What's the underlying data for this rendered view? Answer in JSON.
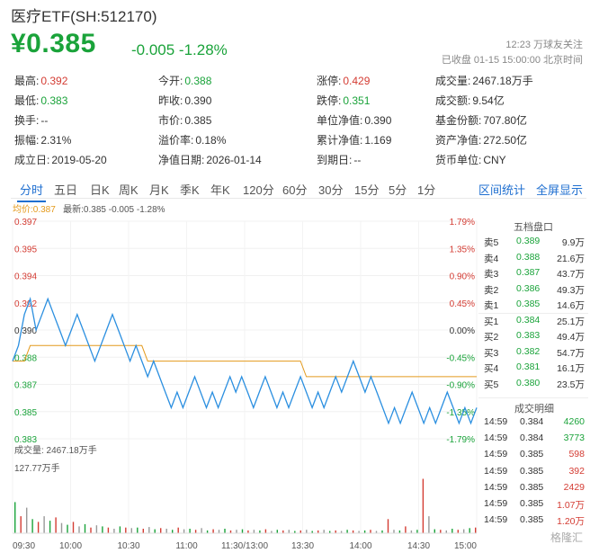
{
  "header": {
    "title": "医疗ETF(SH:512170)",
    "price": "¥0.385",
    "change": "-0.005 -1.28%",
    "time_line1": "12:23  万球友关注",
    "time_line2": "已收盘 01-15 15:00:00 北京时间"
  },
  "stats": [
    {
      "label": "最高:",
      "value": "0.392",
      "color": "red"
    },
    {
      "label": "今开:",
      "value": "0.388",
      "color": "grn"
    },
    {
      "label": "涨停:",
      "value": "0.429",
      "color": "red"
    },
    {
      "label": "成交量:",
      "value": "2467.18万手",
      "color": ""
    },
    {
      "label": "最低:",
      "value": "0.383",
      "color": "grn"
    },
    {
      "label": "昨收:",
      "value": "0.390",
      "color": ""
    },
    {
      "label": "跌停:",
      "value": "0.351",
      "color": "grn"
    },
    {
      "label": "成交额:",
      "value": "9.54亿",
      "color": ""
    },
    {
      "label": "换手:",
      "value": "--",
      "color": ""
    },
    {
      "label": "市价:",
      "value": "0.385",
      "color": ""
    },
    {
      "label": "单位净值:",
      "value": "0.390",
      "color": ""
    },
    {
      "label": "基金份额:",
      "value": "707.80亿",
      "color": ""
    },
    {
      "label": "振幅:",
      "value": "2.31%",
      "color": ""
    },
    {
      "label": "溢价率:",
      "value": "0.18%",
      "color": ""
    },
    {
      "label": "累计净值:",
      "value": "1.169",
      "color": ""
    },
    {
      "label": "资产净值:",
      "value": "272.50亿",
      "color": ""
    },
    {
      "label": "成立日:",
      "value": "2019-05-20",
      "color": ""
    },
    {
      "label": "净值日期:",
      "value": "2026-01-14",
      "color": ""
    },
    {
      "label": "到期日:",
      "value": "--",
      "color": ""
    },
    {
      "label": "货币单位:",
      "value": "CNY",
      "color": ""
    }
  ],
  "tabs": [
    "分时",
    "五日",
    "日K",
    "周K",
    "月K",
    "季K",
    "年K",
    "120分",
    "60分",
    "30分",
    "15分",
    "5分",
    "1分"
  ],
  "tab_links": [
    "区间统计",
    "全屏显示"
  ],
  "legend": {
    "avg": "均价:0.387",
    "last": "最新:0.385 -0.005 -1.28%"
  },
  "chart_data": {
    "type": "line",
    "y_ticks": [
      "0.397",
      "0.395",
      "0.394",
      "0.392",
      "0.390",
      "0.388",
      "0.387",
      "0.385",
      "0.383"
    ],
    "pct_ticks": [
      "1.79%",
      "1.35%",
      "0.90%",
      "0.45%",
      "0.00%",
      "-0.45%",
      "-0.90%",
      "-1.35%",
      "-1.79%"
    ],
    "x_ticks": [
      "09:30",
      "10:00",
      "10:30",
      "11:00",
      "11:30/13:00",
      "13:30",
      "14:00",
      "14:30",
      "15:00"
    ],
    "prev_close": 0.39,
    "ylim": [
      0.383,
      0.397
    ],
    "price": [
      0.388,
      0.389,
      0.391,
      0.392,
      0.39,
      0.391,
      0.392,
      0.391,
      0.39,
      0.389,
      0.39,
      0.391,
      0.39,
      0.389,
      0.388,
      0.389,
      0.39,
      0.391,
      0.39,
      0.389,
      0.388,
      0.389,
      0.388,
      0.387,
      0.388,
      0.387,
      0.386,
      0.385,
      0.386,
      0.385,
      0.386,
      0.387,
      0.386,
      0.385,
      0.386,
      0.385,
      0.386,
      0.387,
      0.386,
      0.387,
      0.386,
      0.385,
      0.386,
      0.387,
      0.386,
      0.385,
      0.386,
      0.385,
      0.386,
      0.387,
      0.386,
      0.385,
      0.386,
      0.385,
      0.386,
      0.387,
      0.386,
      0.387,
      0.388,
      0.387,
      0.386,
      0.387,
      0.386,
      0.385,
      0.384,
      0.385,
      0.384,
      0.385,
      0.386,
      0.385,
      0.384,
      0.385,
      0.384,
      0.385,
      0.386,
      0.385,
      0.384,
      0.385,
      0.384,
      0.385
    ],
    "avg": [
      0.388,
      0.388,
      0.388,
      0.389,
      0.389,
      0.389,
      0.389,
      0.389,
      0.389,
      0.389,
      0.389,
      0.389,
      0.389,
      0.389,
      0.389,
      0.389,
      0.389,
      0.389,
      0.389,
      0.389,
      0.389,
      0.389,
      0.389,
      0.388,
      0.388,
      0.388,
      0.388,
      0.388,
      0.388,
      0.388,
      0.388,
      0.388,
      0.388,
      0.388,
      0.388,
      0.388,
      0.388,
      0.388,
      0.388,
      0.388,
      0.388,
      0.388,
      0.388,
      0.388,
      0.388,
      0.388,
      0.388,
      0.388,
      0.388,
      0.388,
      0.387,
      0.387,
      0.387,
      0.387,
      0.387,
      0.387,
      0.387,
      0.387,
      0.387,
      0.387,
      0.387,
      0.387,
      0.387,
      0.387,
      0.387,
      0.387,
      0.387,
      0.387,
      0.387,
      0.387,
      0.387,
      0.387,
      0.387,
      0.387,
      0.387,
      0.387,
      0.387,
      0.387,
      0.387,
      0.387
    ],
    "volume_label": "成交量: 2467.18万手",
    "volume_max_label": "127.77万手",
    "volume": [
      0.55,
      0.3,
      0.45,
      0.25,
      0.2,
      0.3,
      0.22,
      0.28,
      0.18,
      0.15,
      0.2,
      0.12,
      0.16,
      0.1,
      0.14,
      0.12,
      0.1,
      0.08,
      0.12,
      0.1,
      0.09,
      0.1,
      0.08,
      0.11,
      0.07,
      0.09,
      0.08,
      0.06,
      0.1,
      0.07,
      0.08,
      0.06,
      0.09,
      0.05,
      0.07,
      0.06,
      0.08,
      0.05,
      0.06,
      0.07,
      0.05,
      0.06,
      0.05,
      0.07,
      0.04,
      0.06,
      0.05,
      0.06,
      0.04,
      0.05,
      0.06,
      0.04,
      0.05,
      0.06,
      0.04,
      0.05,
      0.04,
      0.06,
      0.05,
      0.04,
      0.05,
      0.06,
      0.04,
      0.05,
      0.25,
      0.06,
      0.05,
      0.12,
      0.05,
      0.06,
      0.96,
      0.3,
      0.07,
      0.06,
      0.05,
      0.08,
      0.06,
      0.07,
      0.09,
      0.1
    ]
  },
  "order_book": {
    "title": "五档盘口",
    "rows": [
      {
        "label": "卖5",
        "price": "0.389",
        "vol": "9.9万"
      },
      {
        "label": "卖4",
        "price": "0.388",
        "vol": "21.6万"
      },
      {
        "label": "卖3",
        "price": "0.387",
        "vol": "43.7万"
      },
      {
        "label": "卖2",
        "price": "0.386",
        "vol": "49.3万"
      },
      {
        "label": "卖1",
        "price": "0.385",
        "vol": "14.6万"
      },
      {
        "label": "买1",
        "price": "0.384",
        "vol": "25.1万"
      },
      {
        "label": "买2",
        "price": "0.383",
        "vol": "49.4万"
      },
      {
        "label": "买3",
        "price": "0.382",
        "vol": "54.7万"
      },
      {
        "label": "买4",
        "price": "0.381",
        "vol": "16.1万"
      },
      {
        "label": "买5",
        "price": "0.380",
        "vol": "23.5万"
      }
    ]
  },
  "trades": {
    "title": "成交明细",
    "rows": [
      {
        "time": "14:59",
        "price": "0.384",
        "vol": "4260",
        "color": "grn"
      },
      {
        "time": "14:59",
        "price": "0.384",
        "vol": "3773",
        "color": "grn"
      },
      {
        "time": "14:59",
        "price": "0.385",
        "vol": "598",
        "color": "red"
      },
      {
        "time": "14:59",
        "price": "0.385",
        "vol": "392",
        "color": "red"
      },
      {
        "time": "14:59",
        "price": "0.385",
        "vol": "2429",
        "color": "red"
      },
      {
        "time": "14:59",
        "price": "0.385",
        "vol": "1.07万",
        "color": "red"
      },
      {
        "time": "14:59",
        "price": "0.385",
        "vol": "1.20万",
        "color": "red"
      }
    ]
  },
  "watermark": "格隆汇"
}
